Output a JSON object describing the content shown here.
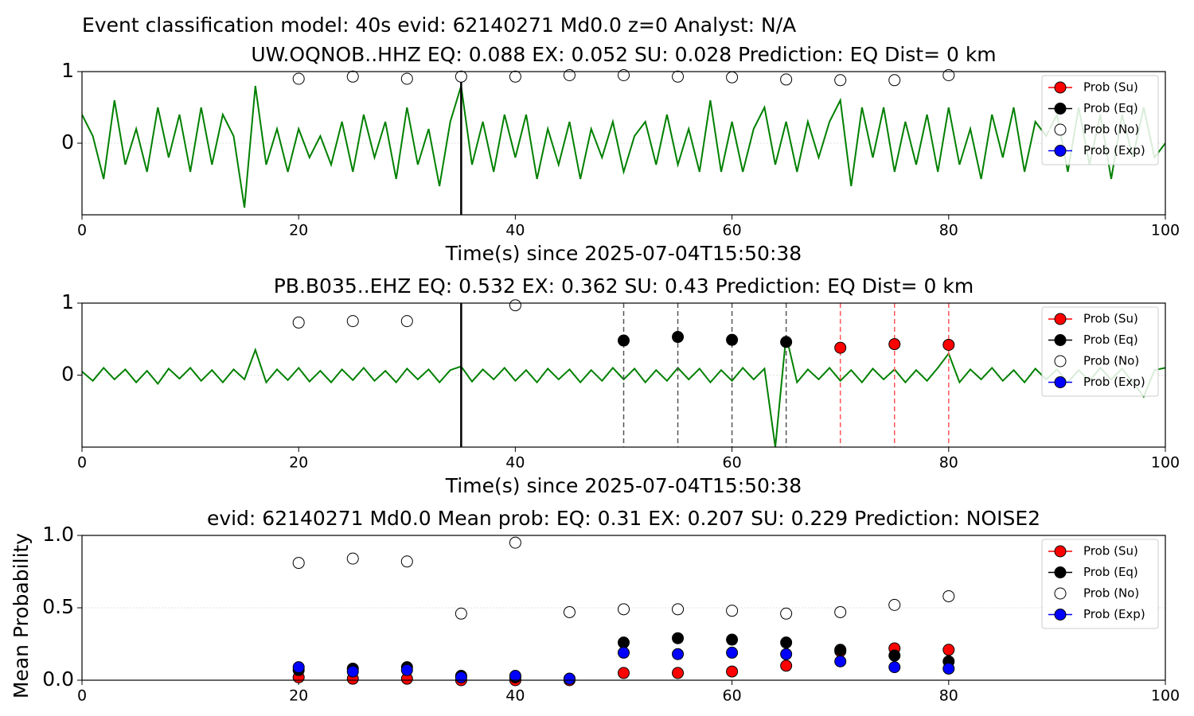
{
  "title": "Event classification model: 40s evid: 62140271 Md0.0 z=0 Analyst: N/A",
  "chart_data": [
    {
      "type": "line",
      "title": "UW.OQNOB..HHZ   EQ: 0.088  EX: 0.052  SU: 0.028   Prediction: EQ    Dist= 0 km",
      "xlabel": "Time(s) since 2025-07-04T15:50:38",
      "xlim": [
        0,
        100
      ],
      "xticks": [
        0,
        20,
        40,
        60,
        80,
        100
      ],
      "ylim": [
        -1,
        1
      ],
      "yticks": [
        0,
        1
      ],
      "grid": true,
      "legend": "upper right",
      "waveform": {
        "color": "#008000",
        "x": [
          0,
          1,
          2,
          3,
          4,
          5,
          6,
          7,
          8,
          9,
          10,
          11,
          12,
          13,
          14,
          15,
          16,
          17,
          18,
          19,
          20,
          21,
          22,
          23,
          24,
          25,
          26,
          27,
          28,
          29,
          30,
          31,
          32,
          33,
          34,
          35,
          36,
          37,
          38,
          39,
          40,
          41,
          42,
          43,
          44,
          45,
          46,
          47,
          48,
          49,
          50,
          51,
          52,
          53,
          54,
          55,
          56,
          57,
          58,
          59,
          60,
          61,
          62,
          63,
          64,
          65,
          66,
          67,
          68,
          69,
          70,
          71,
          72,
          73,
          74,
          75,
          76,
          77,
          78,
          79,
          80,
          81,
          82,
          83,
          84,
          85,
          86,
          87,
          88,
          89,
          90,
          91,
          92,
          93,
          94,
          95,
          96,
          97,
          98,
          99,
          100
        ],
        "values": [
          0.4,
          0.1,
          -0.5,
          0.6,
          -0.3,
          0.2,
          -0.4,
          0.5,
          -0.2,
          0.4,
          -0.4,
          0.5,
          -0.3,
          0.4,
          0.1,
          -0.9,
          0.8,
          -0.3,
          0.2,
          -0.4,
          0.2,
          -0.2,
          0.1,
          -0.3,
          0.3,
          -0.4,
          0.4,
          -0.2,
          0.3,
          -0.5,
          0.5,
          -0.3,
          0.2,
          -0.6,
          0.3,
          0.8,
          -0.3,
          0.3,
          -0.4,
          0.4,
          -0.2,
          0.4,
          -0.5,
          0.2,
          -0.3,
          0.3,
          -0.5,
          0.2,
          -0.2,
          0.3,
          -0.4,
          0.1,
          0.3,
          -0.3,
          0.4,
          -0.3,
          0.2,
          -0.4,
          0.6,
          -0.4,
          0.3,
          -0.4,
          0.2,
          0.5,
          -0.3,
          0.3,
          -0.4,
          0.3,
          -0.2,
          0.3,
          0.6,
          -0.6,
          0.5,
          -0.2,
          0.5,
          -0.4,
          0.3,
          -0.3,
          0.4,
          -0.4,
          0.5,
          -0.3,
          0.2,
          -0.5,
          0.4,
          -0.2,
          0.5,
          -0.4,
          0.3,
          0.1,
          0.4,
          -0.4,
          0.5,
          -0.3,
          0.4,
          -0.5,
          0.4,
          -0.2,
          0.5,
          -0.2,
          0.0
        ]
      },
      "vlines": [
        {
          "x": 35,
          "color": "#000000",
          "dashed": false
        }
      ],
      "x": [
        20,
        25,
        30,
        35,
        40,
        45,
        50,
        55,
        60,
        65,
        70,
        75,
        80
      ],
      "series": [
        {
          "name": "Prob (Su)",
          "color": "#ff0000",
          "values": [
            null,
            null,
            null,
            null,
            null,
            null,
            null,
            null,
            null,
            null,
            null,
            null,
            null
          ]
        },
        {
          "name": "Prob (Eq)",
          "color": "#000000",
          "values": [
            null,
            null,
            null,
            null,
            null,
            null,
            null,
            null,
            null,
            null,
            null,
            null,
            null
          ]
        },
        {
          "name": "Prob (No)",
          "color": "#ffffff",
          "values": [
            0.9,
            0.93,
            0.9,
            0.93,
            0.93,
            0.95,
            0.95,
            0.93,
            0.92,
            0.89,
            0.88,
            0.88,
            0.95
          ]
        },
        {
          "name": "Prob (Exp)",
          "color": "#0000ff",
          "values": [
            null,
            null,
            null,
            null,
            null,
            null,
            null,
            null,
            null,
            null,
            null,
            null,
            null
          ]
        }
      ]
    },
    {
      "type": "line",
      "title": "PB.B035..EHZ   EQ: 0.532  EX: 0.362  SU: 0.43   Prediction: EQ    Dist= 0 km",
      "xlabel": "Time(s) since 2025-07-04T15:50:38",
      "xlim": [
        0,
        100
      ],
      "xticks": [
        0,
        20,
        40,
        60,
        80,
        100
      ],
      "ylim": [
        -1,
        1
      ],
      "yticks": [
        0,
        1
      ],
      "grid": true,
      "legend": "upper right",
      "waveform": {
        "color": "#008000",
        "x": [
          0,
          1,
          2,
          3,
          4,
          5,
          6,
          7,
          8,
          9,
          10,
          11,
          12,
          13,
          14,
          15,
          16,
          17,
          18,
          19,
          20,
          21,
          22,
          23,
          24,
          25,
          26,
          27,
          28,
          29,
          30,
          31,
          32,
          33,
          34,
          35,
          36,
          37,
          38,
          39,
          40,
          41,
          42,
          43,
          44,
          45,
          46,
          47,
          48,
          49,
          50,
          51,
          52,
          53,
          54,
          55,
          56,
          57,
          58,
          59,
          60,
          61,
          62,
          63,
          64,
          65,
          66,
          67,
          68,
          69,
          70,
          71,
          72,
          73,
          74,
          75,
          76,
          77,
          78,
          79,
          80,
          81,
          82,
          83,
          84,
          85,
          86,
          87,
          88,
          89,
          90,
          91,
          92,
          93,
          94,
          95,
          96,
          97,
          98,
          99,
          100
        ],
        "values": [
          0.05,
          -0.08,
          0.1,
          -0.06,
          0.08,
          -0.1,
          0.06,
          -0.12,
          0.09,
          -0.05,
          0.1,
          -0.08,
          0.07,
          -0.1,
          0.08,
          -0.06,
          0.35,
          -0.1,
          0.08,
          -0.07,
          0.1,
          -0.09,
          0.06,
          -0.1,
          0.08,
          -0.07,
          0.1,
          -0.08,
          0.06,
          -0.1,
          0.09,
          -0.06,
          0.08,
          -0.1,
          0.07,
          0.12,
          -0.09,
          0.08,
          -0.06,
          0.1,
          -0.08,
          0.07,
          -0.1,
          0.09,
          -0.06,
          0.08,
          -0.1,
          0.07,
          -0.08,
          0.1,
          -0.06,
          0.09,
          -0.1,
          0.07,
          -0.08,
          0.1,
          -0.06,
          0.09,
          -0.1,
          0.07,
          -0.08,
          0.1,
          -0.06,
          0.09,
          -1.0,
          0.55,
          -0.1,
          0.08,
          -0.06,
          0.1,
          -0.08,
          0.07,
          -0.1,
          0.09,
          -0.06,
          0.08,
          -0.1,
          0.07,
          -0.08,
          0.1,
          0.3,
          -0.1,
          0.08,
          -0.06,
          0.1,
          -0.08,
          0.07,
          -0.1,
          0.09,
          -0.06,
          0.08,
          -0.1,
          0.07,
          -0.08,
          0.1,
          -0.06,
          0.09,
          -0.1,
          -0.3,
          0.07,
          0.1
        ]
      },
      "vlines": [
        {
          "x": 35,
          "color": "#000000",
          "dashed": false
        },
        {
          "x": 50,
          "color": "#555555",
          "dashed": true
        },
        {
          "x": 55,
          "color": "#555555",
          "dashed": true
        },
        {
          "x": 60,
          "color": "#555555",
          "dashed": true
        },
        {
          "x": 65,
          "color": "#555555",
          "dashed": true
        },
        {
          "x": 70,
          "color": "#ff5555",
          "dashed": true
        },
        {
          "x": 75,
          "color": "#ff5555",
          "dashed": true
        },
        {
          "x": 80,
          "color": "#ff5555",
          "dashed": true
        }
      ],
      "x": [
        20,
        25,
        30,
        35,
        40,
        45,
        50,
        55,
        60,
        65,
        70,
        75,
        80
      ],
      "series": [
        {
          "name": "Prob (Su)",
          "color": "#ff0000",
          "values": [
            null,
            null,
            null,
            null,
            null,
            null,
            null,
            null,
            null,
            null,
            0.38,
            0.43,
            0.42
          ]
        },
        {
          "name": "Prob (Eq)",
          "color": "#000000",
          "values": [
            null,
            null,
            null,
            null,
            null,
            null,
            0.48,
            0.53,
            0.49,
            0.46,
            null,
            null,
            null
          ]
        },
        {
          "name": "Prob (No)",
          "color": "#ffffff",
          "values": [
            0.73,
            0.75,
            0.75,
            null,
            0.97,
            null,
            null,
            null,
            null,
            null,
            null,
            null,
            null
          ]
        },
        {
          "name": "Prob (Exp)",
          "color": "#0000ff",
          "values": [
            null,
            null,
            null,
            null,
            null,
            null,
            null,
            null,
            null,
            null,
            null,
            null,
            null
          ]
        }
      ]
    },
    {
      "type": "scatter",
      "title": "evid: 62140271  Md0.0   Mean prob:   EQ: 0.31  EX: 0.207  SU: 0.229   Prediction: NOISE2",
      "ylabel": "Mean Probability",
      "xlim": [
        0,
        100
      ],
      "xticks": [
        0,
        20,
        40,
        60,
        80,
        100
      ],
      "ylim": [
        0,
        1
      ],
      "yticks": [
        {
          "value": 0,
          "label": "0.0"
        },
        {
          "value": 0.5,
          "label": "0.5"
        },
        {
          "value": 1,
          "label": "1.0"
        }
      ],
      "grid": true,
      "legend": "upper right",
      "x": [
        20,
        25,
        30,
        35,
        40,
        45,
        50,
        55,
        60,
        65,
        70,
        75,
        80
      ],
      "series": [
        {
          "name": "Prob (Su)",
          "color": "#ff0000",
          "values": [
            0.02,
            0.01,
            0.01,
            0.0,
            0.0,
            0.0,
            0.05,
            0.05,
            0.06,
            0.1,
            0.2,
            0.22,
            0.21
          ]
        },
        {
          "name": "Prob (Eq)",
          "color": "#000000",
          "values": [
            0.07,
            0.08,
            0.09,
            0.03,
            0.02,
            0.01,
            0.26,
            0.29,
            0.28,
            0.26,
            0.21,
            0.17,
            0.13
          ]
        },
        {
          "name": "Prob (No)",
          "color": "#ffffff",
          "values": [
            0.81,
            0.84,
            0.82,
            0.46,
            0.95,
            0.47,
            0.49,
            0.49,
            0.48,
            0.46,
            0.47,
            0.52,
            0.58
          ]
        },
        {
          "name": "Prob (Exp)",
          "color": "#0000ff",
          "values": [
            0.09,
            0.06,
            0.07,
            0.02,
            0.03,
            0.01,
            0.19,
            0.18,
            0.19,
            0.18,
            0.13,
            0.09,
            0.08
          ]
        }
      ]
    }
  ]
}
